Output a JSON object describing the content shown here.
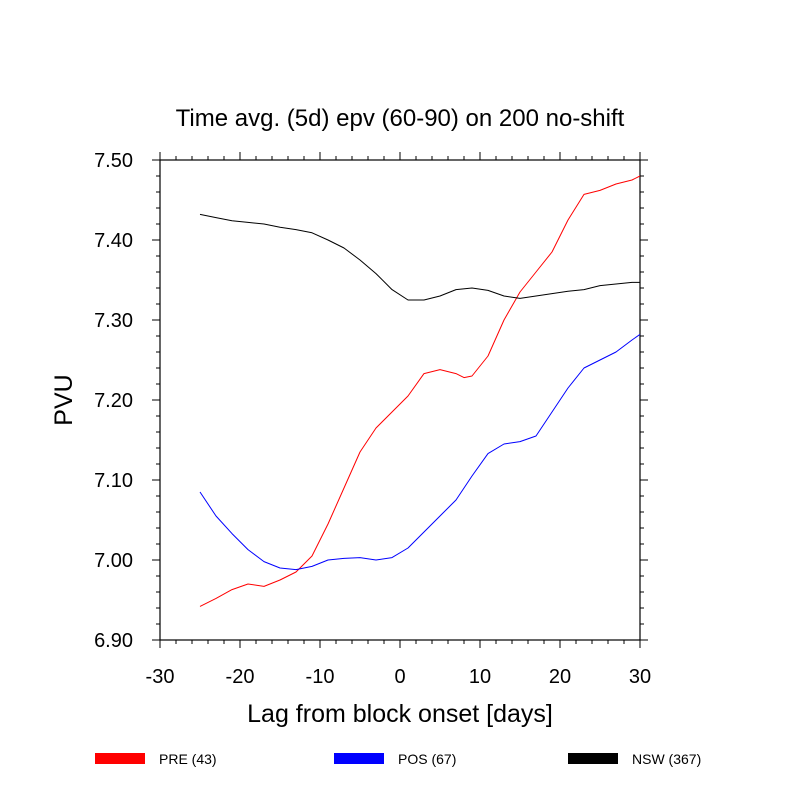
{
  "chart_data": {
    "type": "line",
    "title": "Time avg. (5d) epv (60-90) on 200 no-shift",
    "xlabel": "Lag from block onset [days]",
    "ylabel": "PVU",
    "xlim": [
      -30,
      30
    ],
    "ylim": [
      6.9,
      7.5
    ],
    "xticks": [
      -30,
      -20,
      -10,
      0,
      10,
      20,
      30
    ],
    "xtick_labels": [
      "-30",
      "-20",
      "-10",
      "0",
      "10",
      "20",
      "30"
    ],
    "yticks": [
      6.9,
      7.0,
      7.1,
      7.2,
      7.3,
      7.4,
      7.5
    ],
    "ytick_labels": [
      "6.90",
      "7.00",
      "7.10",
      "7.20",
      "7.30",
      "7.40",
      "7.50"
    ],
    "grid": false,
    "legend_position": "bottom",
    "series": [
      {
        "name": "PRE (43)",
        "color": "#ff0000",
        "x": [
          -25,
          -23,
          -21,
          -19,
          -17,
          -15,
          -13,
          -11,
          -9,
          -7,
          -5,
          -3,
          -1,
          1,
          3,
          5,
          7,
          8,
          9,
          11,
          13,
          15,
          17,
          19,
          21,
          23,
          25,
          27,
          29,
          30
        ],
        "y": [
          6.942,
          6.952,
          6.963,
          6.97,
          6.967,
          6.975,
          6.985,
          7.005,
          7.045,
          7.09,
          7.135,
          7.165,
          7.185,
          7.205,
          7.233,
          7.238,
          7.233,
          7.228,
          7.23,
          7.255,
          7.3,
          7.335,
          7.36,
          7.385,
          7.425,
          7.457,
          7.462,
          7.47,
          7.475,
          7.48
        ]
      },
      {
        "name": "POS (67)",
        "color": "#0000ff",
        "x": [
          -25,
          -23,
          -21,
          -19,
          -17,
          -15,
          -13,
          -11,
          -9,
          -7,
          -5,
          -3,
          -1,
          1,
          3,
          5,
          7,
          9,
          11,
          13,
          15,
          17,
          19,
          21,
          23,
          25,
          27,
          29,
          30
        ],
        "y": [
          7.085,
          7.055,
          7.033,
          7.013,
          6.998,
          6.99,
          6.988,
          6.992,
          7.0,
          7.002,
          7.003,
          7.0,
          7.003,
          7.015,
          7.035,
          7.055,
          7.075,
          7.105,
          7.133,
          7.145,
          7.148,
          7.155,
          7.185,
          7.215,
          7.24,
          7.25,
          7.26,
          7.275,
          7.282
        ]
      },
      {
        "name": "NSW (367)",
        "color": "#000000",
        "x": [
          -25,
          -23,
          -21,
          -19,
          -17,
          -15,
          -13,
          -11,
          -9,
          -7,
          -5,
          -3,
          -1,
          1,
          3,
          5,
          7,
          9,
          11,
          13,
          15,
          17,
          19,
          21,
          23,
          25,
          27,
          29,
          30
        ],
        "y": [
          7.432,
          7.428,
          7.424,
          7.422,
          7.42,
          7.416,
          7.413,
          7.409,
          7.4,
          7.39,
          7.375,
          7.358,
          7.338,
          7.325,
          7.325,
          7.33,
          7.338,
          7.34,
          7.337,
          7.33,
          7.327,
          7.33,
          7.333,
          7.336,
          7.338,
          7.343,
          7.345,
          7.347,
          7.347
        ]
      }
    ]
  }
}
